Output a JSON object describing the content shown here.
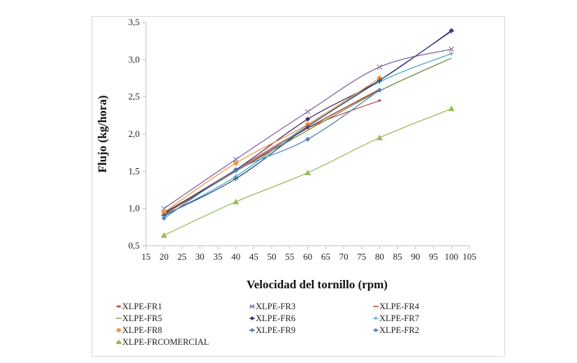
{
  "chart_data": {
    "type": "line",
    "title": "",
    "xlabel": "Velocidad del tornillo (rpm)",
    "ylabel": "Flujo (kg/hora)",
    "xlim": [
      15,
      105
    ],
    "ylim": [
      0.5,
      3.5
    ],
    "x_ticks": [
      "15",
      "20",
      "25",
      "30",
      "35",
      "40",
      "45",
      "50",
      "55",
      "60",
      "65",
      "70",
      "75",
      "80",
      "85",
      "90",
      "95",
      "100",
      "105"
    ],
    "x_tick_values": [
      15,
      20,
      25,
      30,
      35,
      40,
      45,
      50,
      55,
      60,
      65,
      70,
      75,
      80,
      85,
      90,
      95,
      100,
      105
    ],
    "y_ticks": [
      "0,5",
      "1,0",
      "1,5",
      "2,0",
      "2,5",
      "3,0",
      "3,5"
    ],
    "y_tick_values": [
      0.5,
      1.0,
      1.5,
      2.0,
      2.5,
      3.0,
      3.5
    ],
    "grid": false,
    "legend_position": "bottom",
    "series": [
      {
        "name": "XLPE-FR1",
        "color": "#c0504d",
        "marker": "dash",
        "x": [
          20,
          40,
          60,
          80
        ],
        "y": [
          0.93,
          1.52,
          2.08,
          2.45
        ]
      },
      {
        "name": "XLPE-FR3",
        "color": "#8064a2",
        "marker": "x",
        "x": [
          20,
          40,
          60,
          80,
          100
        ],
        "y": [
          1.0,
          1.66,
          2.3,
          2.9,
          3.14
        ]
      },
      {
        "name": "XLPE-FR4",
        "color": "#9b2d2a",
        "marker": "none",
        "x": [
          20,
          40,
          60,
          80
        ],
        "y": [
          0.92,
          1.5,
          2.08,
          2.6
        ]
      },
      {
        "name": "XLPE-FR5",
        "color": "#6e8b3d",
        "marker": "none",
        "x": [
          20,
          40,
          60,
          80,
          100
        ],
        "y": [
          0.93,
          1.5,
          2.05,
          2.58,
          3.02
        ]
      },
      {
        "name": "XLPE-FR6",
        "color": "#3d2d6b",
        "marker": "diamond",
        "x": [
          20,
          40,
          60,
          80,
          100
        ],
        "y": [
          0.94,
          1.52,
          2.2,
          2.72,
          3.39
        ]
      },
      {
        "name": "XLPE-FR7",
        "color": "#4bacc6",
        "marker": "plus",
        "x": [
          20,
          40,
          60,
          80,
          100
        ],
        "y": [
          0.9,
          1.43,
          2.12,
          2.7,
          3.08
        ]
      },
      {
        "name": "XLPE-FR8",
        "color": "#f79646",
        "marker": "circle",
        "x": [
          20,
          40,
          60,
          80
        ],
        "y": [
          0.95,
          1.61,
          2.13,
          2.75
        ]
      },
      {
        "name": "XLPE-FR9",
        "color": "#2e4a7a",
        "marker": "plus",
        "x": [
          20,
          40,
          60,
          80,
          100
        ],
        "y": [
          0.91,
          1.4,
          2.1,
          2.72,
          3.38
        ]
      },
      {
        "name": "XLPE-FR2",
        "color": "#4f81bd",
        "marker": "diamond",
        "x": [
          20,
          40,
          60,
          80
        ],
        "y": [
          0.87,
          1.51,
          1.93,
          2.59
        ]
      },
      {
        "name": "XLPE-FRCOMERCIAL",
        "color": "#9bbb59",
        "marker": "triangle",
        "x": [
          20,
          40,
          60,
          80,
          100
        ],
        "y": [
          0.64,
          1.09,
          1.48,
          1.95,
          2.34
        ]
      }
    ]
  }
}
